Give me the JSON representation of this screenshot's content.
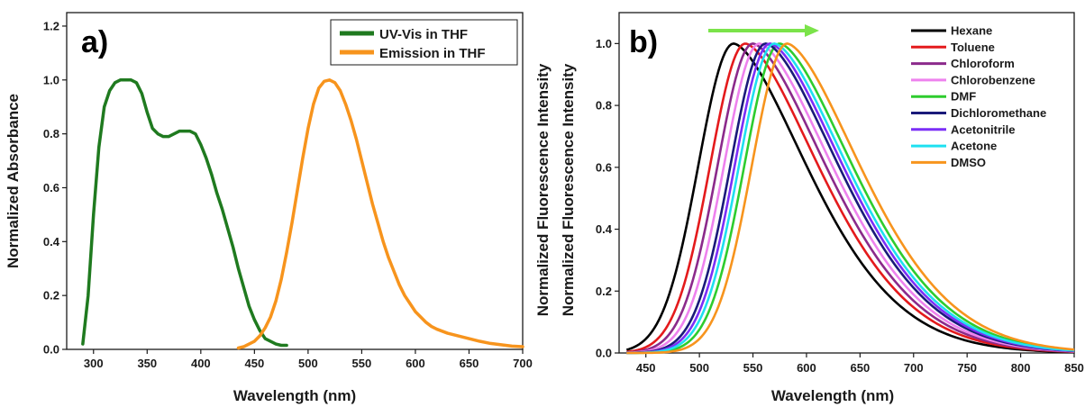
{
  "chart_data": [
    {
      "type": "line",
      "panel_label": "a)",
      "xlabel": "Wavelength (nm)",
      "ylabel": "Normalized Absorbance",
      "xlim": [
        275,
        700
      ],
      "ylim": [
        0,
        1.25
      ],
      "xticks": [
        300,
        350,
        400,
        450,
        500,
        550,
        600,
        650,
        700
      ],
      "yticks": [
        0.0,
        0.2,
        0.4,
        0.6,
        0.8,
        1.0,
        1.2
      ],
      "grid": false,
      "legend": "top-right",
      "series": [
        {
          "name": "UV-Vis in THF",
          "color": "#1f7a1f",
          "x": [
            290,
            295,
            300,
            305,
            310,
            315,
            320,
            325,
            330,
            335,
            340,
            345,
            350,
            355,
            360,
            365,
            370,
            375,
            380,
            385,
            390,
            395,
            400,
            405,
            410,
            415,
            420,
            425,
            430,
            435,
            440,
            445,
            450,
            455,
            460,
            465,
            470,
            475,
            480
          ],
          "y": [
            0.02,
            0.2,
            0.5,
            0.75,
            0.9,
            0.96,
            0.99,
            1.0,
            1.0,
            1.0,
            0.99,
            0.95,
            0.88,
            0.82,
            0.8,
            0.79,
            0.79,
            0.8,
            0.81,
            0.81,
            0.81,
            0.8,
            0.76,
            0.71,
            0.65,
            0.58,
            0.52,
            0.45,
            0.38,
            0.3,
            0.23,
            0.16,
            0.11,
            0.07,
            0.04,
            0.03,
            0.02,
            0.015,
            0.015
          ]
        },
        {
          "name": "Emission in THF",
          "color": "#f7941d",
          "x": [
            435,
            440,
            445,
            450,
            455,
            460,
            465,
            470,
            475,
            480,
            485,
            490,
            495,
            500,
            505,
            510,
            515,
            520,
            525,
            530,
            535,
            540,
            545,
            550,
            555,
            560,
            565,
            570,
            575,
            580,
            585,
            590,
            595,
            600,
            605,
            610,
            615,
            620,
            630,
            640,
            650,
            660,
            670,
            680,
            690,
            700
          ],
          "y": [
            0.005,
            0.01,
            0.02,
            0.03,
            0.05,
            0.08,
            0.12,
            0.18,
            0.26,
            0.36,
            0.47,
            0.59,
            0.71,
            0.82,
            0.91,
            0.97,
            0.995,
            1.0,
            0.99,
            0.96,
            0.91,
            0.85,
            0.78,
            0.7,
            0.62,
            0.54,
            0.47,
            0.4,
            0.34,
            0.29,
            0.24,
            0.2,
            0.17,
            0.14,
            0.12,
            0.1,
            0.085,
            0.075,
            0.06,
            0.05,
            0.04,
            0.03,
            0.022,
            0.017,
            0.012,
            0.01
          ]
        }
      ]
    },
    {
      "type": "line",
      "panel_label": "b)",
      "xlabel": "Wavelength (nm)",
      "ylabel": "Normalized Fluorescence Intensity",
      "xlim": [
        425,
        850
      ],
      "ylim": [
        0,
        1.1
      ],
      "xticks": [
        450,
        500,
        550,
        600,
        650,
        700,
        750,
        800,
        850
      ],
      "yticks": [
        0.0,
        0.2,
        0.4,
        0.6,
        0.8,
        1.0
      ],
      "grid": false,
      "legend": "top-right",
      "annotation": "arrow indicating red shift with increasing solvent polarity",
      "arrow_color": "#7be34a",
      "series": [
        {
          "name": "Hexane",
          "color": "#000000",
          "peak": 532
        },
        {
          "name": "Toluene",
          "color": "#e41a1c",
          "peak": 543
        },
        {
          "name": "Chloroform",
          "color": "#8b2a8b",
          "peak": 550
        },
        {
          "name": "Chlorobenzene",
          "color": "#ee82ee",
          "peak": 556
        },
        {
          "name": "DMF",
          "color": "#2ecc2e",
          "peak": 575
        },
        {
          "name": "Dichloromethane",
          "color": "#1a1a7a",
          "peak": 562
        },
        {
          "name": "Acetonitrile",
          "color": "#7b2ff7",
          "peak": 566
        },
        {
          "name": "Acetone",
          "color": "#1ee0f0",
          "peak": 570
        },
        {
          "name": "DMSO",
          "color": "#f7941d",
          "peak": 582
        }
      ]
    }
  ]
}
